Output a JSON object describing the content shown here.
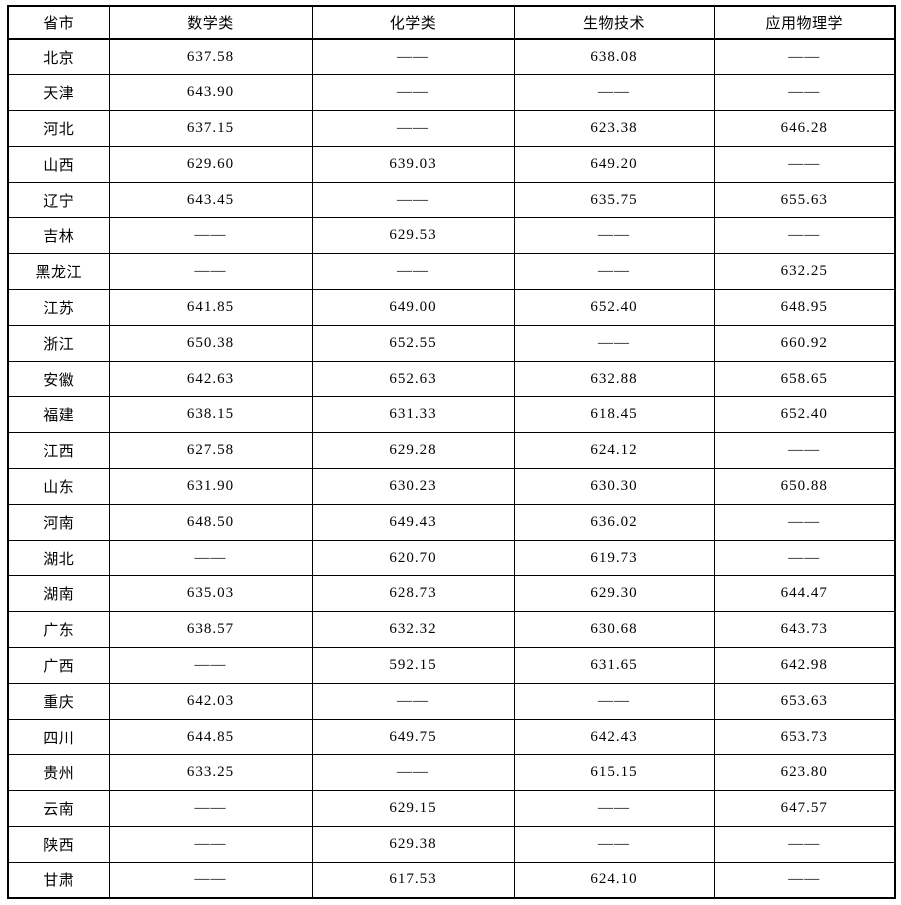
{
  "page": {
    "background_color": "#ffffff",
    "border_color": "#000000",
    "text_color": "#000000"
  },
  "table": {
    "columns": [
      "省市",
      "数学类",
      "化学类",
      "生物技术",
      "应用物理学"
    ],
    "empty_marker": "——",
    "rows": [
      [
        "北京",
        "637.58",
        "——",
        "638.08",
        "——"
      ],
      [
        "天津",
        "643.90",
        "——",
        "——",
        "——"
      ],
      [
        "河北",
        "637.15",
        "——",
        "623.38",
        "646.28"
      ],
      [
        "山西",
        "629.60",
        "639.03",
        "649.20",
        "——"
      ],
      [
        "辽宁",
        "643.45",
        "——",
        "635.75",
        "655.63"
      ],
      [
        "吉林",
        "——",
        "629.53",
        "——",
        "——"
      ],
      [
        "黑龙江",
        "——",
        "——",
        "——",
        "632.25"
      ],
      [
        "江苏",
        "641.85",
        "649.00",
        "652.40",
        "648.95"
      ],
      [
        "浙江",
        "650.38",
        "652.55",
        "——",
        "660.92"
      ],
      [
        "安徽",
        "642.63",
        "652.63",
        "632.88",
        "658.65"
      ],
      [
        "福建",
        "638.15",
        "631.33",
        "618.45",
        "652.40"
      ],
      [
        "江西",
        "627.58",
        "629.28",
        "624.12",
        "——"
      ],
      [
        "山东",
        "631.90",
        "630.23",
        "630.30",
        "650.88"
      ],
      [
        "河南",
        "648.50",
        "649.43",
        "636.02",
        "——"
      ],
      [
        "湖北",
        "——",
        "620.70",
        "619.73",
        "——"
      ],
      [
        "湖南",
        "635.03",
        "628.73",
        "629.30",
        "644.47"
      ],
      [
        "广东",
        "638.57",
        "632.32",
        "630.68",
        "643.73"
      ],
      [
        "广西",
        "——",
        "592.15",
        "631.65",
        "642.98"
      ],
      [
        "重庆",
        "642.03",
        "——",
        "——",
        "653.63"
      ],
      [
        "四川",
        "644.85",
        "649.75",
        "642.43",
        "653.73"
      ],
      [
        "贵州",
        "633.25",
        "——",
        "615.15",
        "623.80"
      ],
      [
        "云南",
        "——",
        "629.15",
        "——",
        "647.57"
      ],
      [
        "陕西",
        "——",
        "629.38",
        "——",
        "——"
      ],
      [
        "甘肃",
        "——",
        "617.53",
        "624.10",
        "——"
      ]
    ]
  },
  "chart_data": {
    "type": "table",
    "title": "",
    "columns": [
      "省市",
      "数学类",
      "化学类",
      "生物技术",
      "应用物理学"
    ],
    "rows": [
      {
        "province": "北京",
        "数学类": 637.58,
        "化学类": null,
        "生物技术": 638.08,
        "应用物理学": null
      },
      {
        "province": "天津",
        "数学类": 643.9,
        "化学类": null,
        "生物技术": null,
        "应用物理学": null
      },
      {
        "province": "河北",
        "数学类": 637.15,
        "化学类": null,
        "生物技术": 623.38,
        "应用物理学": 646.28
      },
      {
        "province": "山西",
        "数学类": 629.6,
        "化学类": 639.03,
        "生物技术": 649.2,
        "应用物理学": null
      },
      {
        "province": "辽宁",
        "数学类": 643.45,
        "化学类": null,
        "生物技术": 635.75,
        "应用物理学": 655.63
      },
      {
        "province": "吉林",
        "数学类": null,
        "化学类": 629.53,
        "生物技术": null,
        "应用物理学": null
      },
      {
        "province": "黑龙江",
        "数学类": null,
        "化学类": null,
        "生物技术": null,
        "应用物理学": 632.25
      },
      {
        "province": "江苏",
        "数学类": 641.85,
        "化学类": 649.0,
        "生物技术": 652.4,
        "应用物理学": 648.95
      },
      {
        "province": "浙江",
        "数学类": 650.38,
        "化学类": 652.55,
        "生物技术": null,
        "应用物理学": 660.92
      },
      {
        "province": "安徽",
        "数学类": 642.63,
        "化学类": 652.63,
        "生物技术": 632.88,
        "应用物理学": 658.65
      },
      {
        "province": "福建",
        "数学类": 638.15,
        "化学类": 631.33,
        "生物技术": 618.45,
        "应用物理学": 652.4
      },
      {
        "province": "江西",
        "数学类": 627.58,
        "化学类": 629.28,
        "生物技术": 624.12,
        "应用物理学": null
      },
      {
        "province": "山东",
        "数学类": 631.9,
        "化学类": 630.23,
        "生物技术": 630.3,
        "应用物理学": 650.88
      },
      {
        "province": "河南",
        "数学类": 648.5,
        "化学类": 649.43,
        "生物技术": 636.02,
        "应用物理学": null
      },
      {
        "province": "湖北",
        "数学类": null,
        "化学类": 620.7,
        "生物技术": 619.73,
        "应用物理学": null
      },
      {
        "province": "湖南",
        "数学类": 635.03,
        "化学类": 628.73,
        "生物技术": 629.3,
        "应用物理学": 644.47
      },
      {
        "province": "广东",
        "数学类": 638.57,
        "化学类": 632.32,
        "生物技术": 630.68,
        "应用物理学": 643.73
      },
      {
        "province": "广西",
        "数学类": null,
        "化学类": 592.15,
        "生物技术": 631.65,
        "应用物理学": 642.98
      },
      {
        "province": "重庆",
        "数学类": 642.03,
        "化学类": null,
        "生物技术": null,
        "应用物理学": 653.63
      },
      {
        "province": "四川",
        "数学类": 644.85,
        "化学类": 649.75,
        "生物技术": 642.43,
        "应用物理学": 653.73
      },
      {
        "province": "贵州",
        "数学类": 633.25,
        "化学类": null,
        "生物技术": 615.15,
        "应用物理学": 623.8
      },
      {
        "province": "云南",
        "数学类": null,
        "化学类": 629.15,
        "生物技术": null,
        "应用物理学": 647.57
      },
      {
        "province": "陕西",
        "数学类": null,
        "化学类": 629.38,
        "生物技术": null,
        "应用物理学": null
      },
      {
        "province": "甘肃",
        "数学类": null,
        "化学类": 617.53,
        "生物技术": 624.1,
        "应用物理学": null
      }
    ],
    "notes": "missing values shown as long dash ——"
  }
}
